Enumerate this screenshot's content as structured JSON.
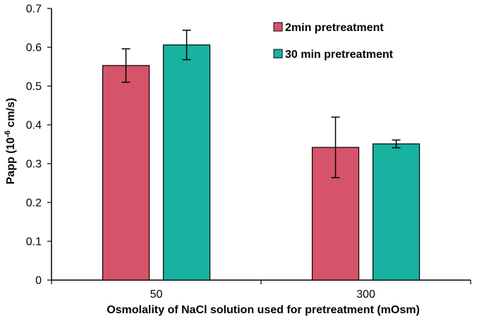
{
  "chart_data": {
    "type": "bar",
    "title": "",
    "xlabel": "Osmolality of NaCl solution used for pretreatment (mOsm)",
    "ylabel": "Papp (10",
    "ylabel_sup": "-6",
    "ylabel_tail": " cm/s)",
    "categories": [
      "50",
      "300"
    ],
    "ylim": [
      0,
      0.7
    ],
    "yticks": [
      0,
      0.1,
      0.2,
      0.3,
      0.4,
      0.5,
      0.6,
      0.7
    ],
    "grid": false,
    "legend_position": "top-right",
    "series": [
      {
        "name": "2min pretreatment",
        "color": "#D6546A",
        "values": [
          0.553,
          0.342
        ],
        "errors": [
          0.043,
          0.078
        ]
      },
      {
        "name": "30 min pretreatment",
        "color": "#17B2A0",
        "values": [
          0.606,
          0.351
        ],
        "errors": [
          0.038,
          0.01
        ]
      }
    ]
  }
}
